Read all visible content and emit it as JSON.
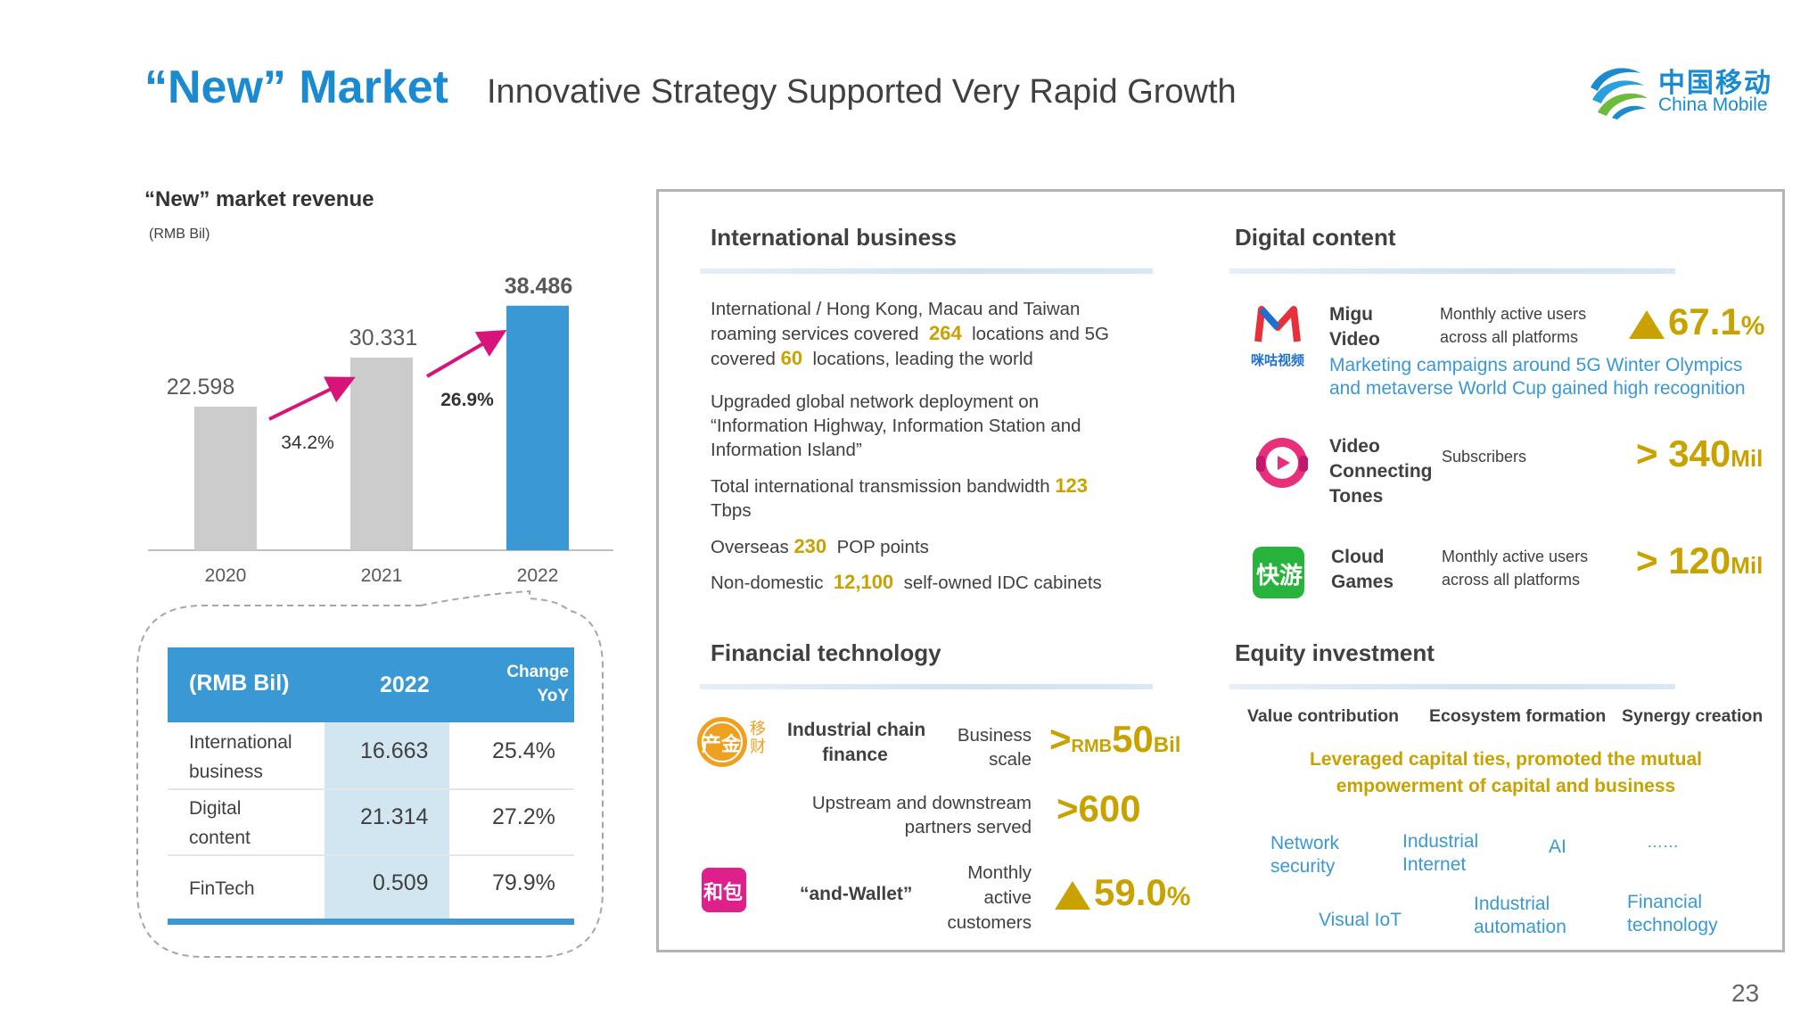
{
  "header": {
    "title_main": "“New” Market",
    "title_sub": "Innovative Strategy Supported Very Rapid Growth",
    "logo_cn": "中国移动",
    "logo_en": "China Mobile"
  },
  "chart_data": {
    "type": "bar",
    "title": "“New” market revenue",
    "unit": "(RMB Bil)",
    "categories": [
      "2020",
      "2021",
      "2022"
    ],
    "values": [
      22.598,
      30.331,
      38.486
    ],
    "value_labels": [
      "22.598",
      "30.331",
      "38.486"
    ],
    "growth_labels": [
      "34.2%",
      "26.9%"
    ],
    "colors": [
      "#cccccc",
      "#cccccc",
      "#3a98d4"
    ],
    "arrow_color": "#d6147a",
    "ylim": [
      0,
      40
    ]
  },
  "table": {
    "headers": [
      "(RMB Bil)",
      "2022",
      "Change YoY"
    ],
    "rows": [
      {
        "label_line1": "International",
        "label_line2": "business",
        "value": "16.663",
        "change": "25.4%"
      },
      {
        "label_line1": "Digital",
        "label_line2": "content",
        "value": "21.314",
        "change": "27.2%"
      },
      {
        "label_line1": "FinTech",
        "label_line2": "",
        "value": "0.509",
        "change": "79.9%"
      }
    ]
  },
  "international": {
    "title": "International business",
    "p1_a": "International / Hong Kong, Macau and Taiwan",
    "p1_b": "roaming services covered",
    "p1_n1": "264",
    "p1_c": "locations and 5G",
    "p1_d": "covered",
    "p1_n2": "60",
    "p1_e": "locations, leading the world",
    "p2_a": "Upgraded global network deployment on",
    "p2_b": "“Information Highway, Information Station and",
    "p2_c": "Information Island”",
    "p3_a": "Total international transmission bandwidth",
    "p3_n": "123",
    "p3_b": "Tbps",
    "p4_a": "Overseas",
    "p4_n": "230",
    "p4_b": "POP points",
    "p5_a": "Non-domestic",
    "p5_n": "12,100",
    "p5_b": "self-owned IDC cabinets"
  },
  "digital": {
    "title": "Digital content",
    "migu_label1": "Migu",
    "migu_label2": "Video",
    "migu_logo_text": "咪咕视频",
    "migu_desc1": "Monthly active users",
    "migu_desc2": "across all platforms",
    "migu_value": "67.1",
    "migu_unit": "%",
    "migu_blue1": "Marketing campaigns around 5G Winter Olympics",
    "migu_blue2": "and metaverse World Cup gained high recognition",
    "vct_label1": "Video",
    "vct_label2": "Connecting",
    "vct_label3": "Tones",
    "vct_desc": "Subscribers",
    "vct_prefix": ">",
    "vct_value": "340",
    "vct_unit": "Mil",
    "cloud_label1": "Cloud",
    "cloud_label2": "Games",
    "cloud_logo_text": "快游",
    "cloud_desc1": "Monthly active users",
    "cloud_desc2": "across all platforms",
    "cloud_prefix": ">",
    "cloud_value": "120",
    "cloud_unit": "Mil"
  },
  "fintech": {
    "title": "Financial technology",
    "logo1_text1": "产金",
    "logo1_text2": "移",
    "logo1_text3": "财",
    "icf_label1": "Industrial chain",
    "icf_label2": "finance",
    "icf_desc1": "Business",
    "icf_desc2": "scale",
    "icf_prefix": ">",
    "icf_currency": "RMB",
    "icf_value": "50",
    "icf_unit": "Bil",
    "partners_desc1": "Upstream and downstream",
    "partners_desc2": "partners served",
    "partners_value": ">600",
    "logo2_text": "和包",
    "wallet_label": "“and-Wallet”",
    "wallet_desc1": "Monthly",
    "wallet_desc2": "active",
    "wallet_desc3": "customers",
    "wallet_value": "59.0",
    "wallet_unit": "%"
  },
  "equity": {
    "title": "Equity investment",
    "col1": "Value contribution",
    "col2": "Ecosystem formation",
    "col3": "Synergy creation",
    "gold1": "Leveraged capital ties, promoted the mutual",
    "gold2": "empowerment of capital and business",
    "t1a": "Network",
    "t1b": "security",
    "t2a": "Industrial",
    "t2b": "Internet",
    "t3": "AI",
    "t4": "……",
    "t5": "Visual IoT",
    "t6a": "Industrial",
    "t6b": "automation",
    "t7a": "Financial",
    "t7b": "technology"
  },
  "page_number": "23"
}
